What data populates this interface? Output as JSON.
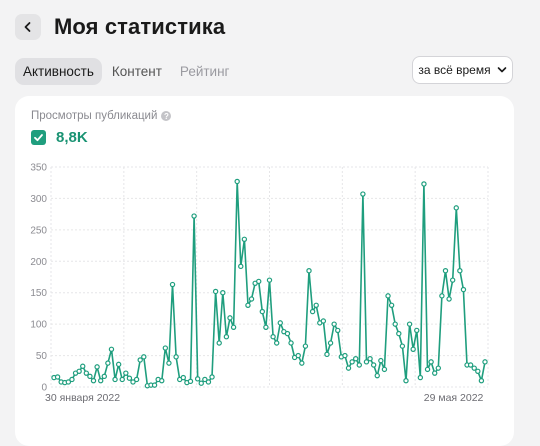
{
  "header": {
    "title": "Моя статистика",
    "back_icon": "chevron-left-icon"
  },
  "tabs": [
    {
      "label": "Активность",
      "active": true
    },
    {
      "label": "Контент",
      "active": false
    },
    {
      "label": "Рейтинг",
      "active": false
    }
  ],
  "period_select": {
    "value": "за всё время",
    "icon": "chevron-down-icon"
  },
  "metric": {
    "label": "Просмотры публикаций",
    "help_icon": "question-icon",
    "checked": true,
    "value": "8,8K",
    "color": "#1a9373"
  },
  "chart_data": {
    "type": "line",
    "ylim": [
      0,
      350
    ],
    "y_ticks": [
      "0",
      "50",
      "100",
      "150",
      "200",
      "250",
      "300",
      "350"
    ],
    "x_ticks": [
      {
        "label": "30 января 2022",
        "index": 0
      },
      {
        "label": "29 мая 2022",
        "index": 119
      }
    ],
    "grid": true,
    "series": [
      {
        "color": "#1f9e7e",
        "values": [
          15,
          16,
          8,
          7,
          8,
          12,
          22,
          25,
          33,
          22,
          17,
          10,
          32,
          10,
          17,
          38,
          60,
          12,
          36,
          12,
          22,
          14,
          8,
          12,
          43,
          48,
          2,
          3,
          3,
          12,
          10,
          62,
          38,
          163,
          48,
          12,
          15,
          7,
          9,
          272,
          13,
          6,
          12,
          8,
          16,
          152,
          70,
          150,
          80,
          110,
          95,
          327,
          192,
          235,
          130,
          140,
          165,
          168,
          120,
          95,
          170,
          80,
          70,
          102,
          88,
          85,
          70,
          47,
          50,
          38,
          65,
          185,
          120,
          130,
          102,
          105,
          52,
          70,
          100,
          90,
          48,
          50,
          30,
          40,
          45,
          35,
          307,
          40,
          45,
          35,
          18,
          42,
          28,
          145,
          130,
          100,
          85,
          65,
          10,
          100,
          60,
          90,
          15,
          323,
          28,
          40,
          22,
          30,
          145,
          185,
          140,
          170,
          285,
          185,
          155,
          35,
          35,
          30,
          25,
          10,
          40
        ]
      }
    ]
  }
}
